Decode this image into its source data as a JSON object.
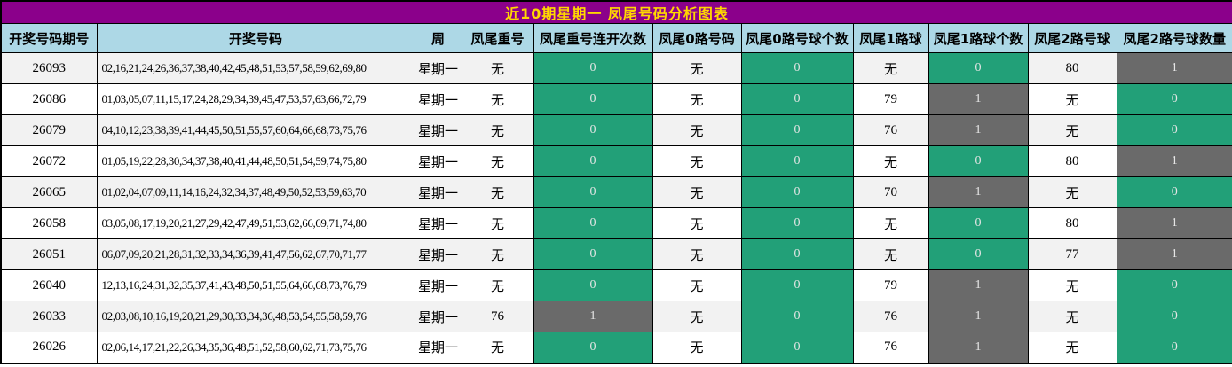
{
  "title": "近10期星期一 凤尾号码分析图表",
  "colors": {
    "title_bg": "#8B008B",
    "title_text": "#FFD700",
    "header_bg": "#ADD8E6",
    "count_zero_bg": "#22A078",
    "count_nonzero_bg": "#6A6A6A",
    "count_text": "#E6E6E6",
    "row_stripe_bg": "#F2F2F2",
    "border": "#000000"
  },
  "columns": [
    {
      "key": "period",
      "label": "开奖号码期号"
    },
    {
      "key": "numbers",
      "label": "开奖号码"
    },
    {
      "key": "week",
      "label": "周"
    },
    {
      "key": "repeat",
      "label": "凤尾重号"
    },
    {
      "key": "repeat_streak",
      "label": "凤尾重号连开次数",
      "type": "count"
    },
    {
      "key": "road0",
      "label": "凤尾0路号码"
    },
    {
      "key": "road0_count",
      "label": "凤尾0路号球个数",
      "type": "count"
    },
    {
      "key": "road1",
      "label": "凤尾1路球"
    },
    {
      "key": "road1_count",
      "label": "凤尾1路球个数",
      "type": "count"
    },
    {
      "key": "road2",
      "label": "凤尾2路号球"
    },
    {
      "key": "road2_count",
      "label": "凤尾2路号球数量",
      "type": "count"
    }
  ],
  "rows": [
    {
      "period": "26093",
      "numbers": "02,16,21,24,26,36,37,38,40,42,45,48,51,53,57,58,59,62,69,80",
      "week": "星期一",
      "repeat": "无",
      "repeat_streak": "0",
      "road0": "无",
      "road0_count": "0",
      "road1": "无",
      "road1_count": "0",
      "road2": "80",
      "road2_count": "1"
    },
    {
      "period": "26086",
      "numbers": "01,03,05,07,11,15,17,24,28,29,34,39,45,47,53,57,63,66,72,79",
      "week": "星期一",
      "repeat": "无",
      "repeat_streak": "0",
      "road0": "无",
      "road0_count": "0",
      "road1": "79",
      "road1_count": "1",
      "road2": "无",
      "road2_count": "0"
    },
    {
      "period": "26079",
      "numbers": "04,10,12,23,38,39,41,44,45,50,51,55,57,60,64,66,68,73,75,76",
      "week": "星期一",
      "repeat": "无",
      "repeat_streak": "0",
      "road0": "无",
      "road0_count": "0",
      "road1": "76",
      "road1_count": "1",
      "road2": "无",
      "road2_count": "0"
    },
    {
      "period": "26072",
      "numbers": "01,05,19,22,28,30,34,37,38,40,41,44,48,50,51,54,59,74,75,80",
      "week": "星期一",
      "repeat": "无",
      "repeat_streak": "0",
      "road0": "无",
      "road0_count": "0",
      "road1": "无",
      "road1_count": "0",
      "road2": "80",
      "road2_count": "1"
    },
    {
      "period": "26065",
      "numbers": "01,02,04,07,09,11,14,16,24,32,34,37,48,49,50,52,53,59,63,70",
      "week": "星期一",
      "repeat": "无",
      "repeat_streak": "0",
      "road0": "无",
      "road0_count": "0",
      "road1": "70",
      "road1_count": "1",
      "road2": "无",
      "road2_count": "0"
    },
    {
      "period": "26058",
      "numbers": "03,05,08,17,19,20,21,27,29,42,47,49,51,53,62,66,69,71,74,80",
      "week": "星期一",
      "repeat": "无",
      "repeat_streak": "0",
      "road0": "无",
      "road0_count": "0",
      "road1": "无",
      "road1_count": "0",
      "road2": "80",
      "road2_count": "1"
    },
    {
      "period": "26051",
      "numbers": "06,07,09,20,21,28,31,32,33,34,36,39,41,47,56,62,67,70,71,77",
      "week": "星期一",
      "repeat": "无",
      "repeat_streak": "0",
      "road0": "无",
      "road0_count": "0",
      "road1": "无",
      "road1_count": "0",
      "road2": "77",
      "road2_count": "1"
    },
    {
      "period": "26040",
      "numbers": "12,13,16,24,31,32,35,37,41,43,48,50,51,55,64,66,68,73,76,79",
      "week": "星期一",
      "repeat": "无",
      "repeat_streak": "0",
      "road0": "无",
      "road0_count": "0",
      "road1": "79",
      "road1_count": "1",
      "road2": "无",
      "road2_count": "0"
    },
    {
      "period": "26033",
      "numbers": "02,03,08,10,16,19,20,21,29,30,33,34,36,48,53,54,55,58,59,76",
      "week": "星期一",
      "repeat": "76",
      "repeat_streak": "1",
      "road0": "无",
      "road0_count": "0",
      "road1": "76",
      "road1_count": "1",
      "road2": "无",
      "road2_count": "0"
    },
    {
      "period": "26026",
      "numbers": "02,06,14,17,21,22,26,34,35,36,48,51,52,58,60,62,71,73,75,76",
      "week": "星期一",
      "repeat": "无",
      "repeat_streak": "0",
      "road0": "无",
      "road0_count": "0",
      "road1": "76",
      "road1_count": "1",
      "road2": "无",
      "road2_count": "0"
    }
  ]
}
